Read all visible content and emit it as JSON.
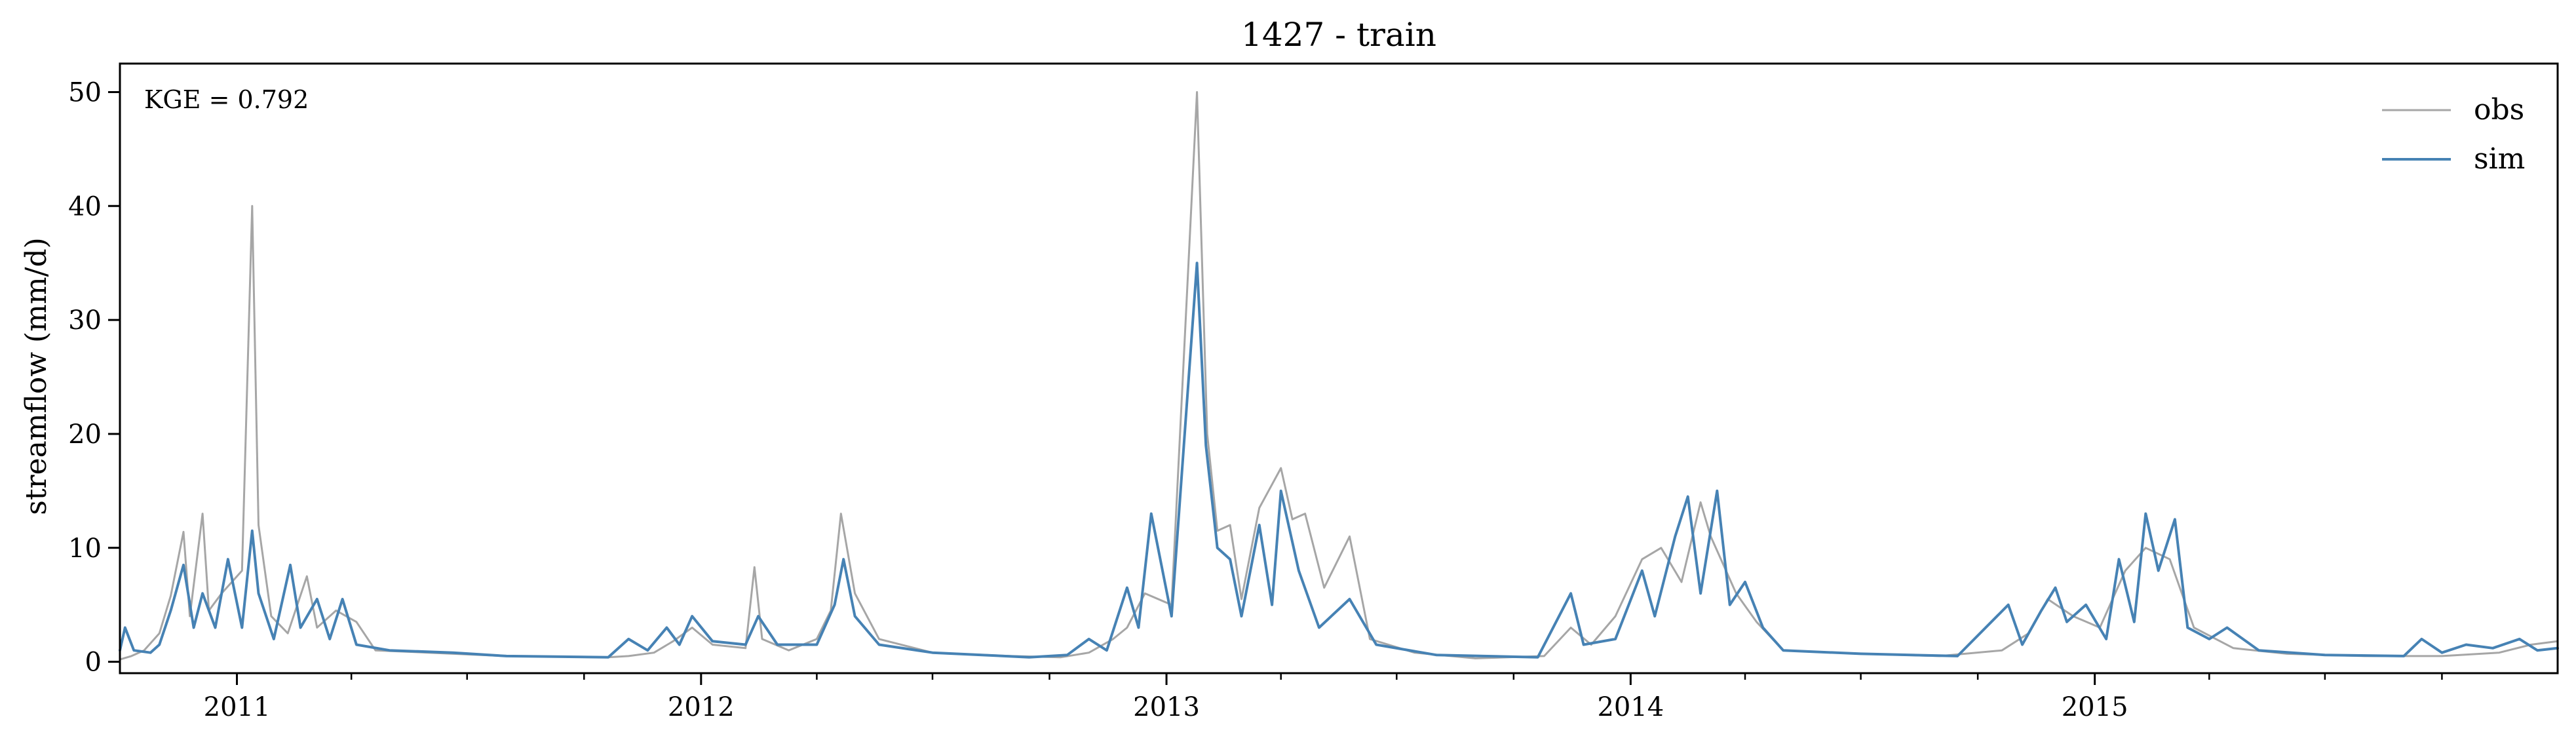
{
  "chart_data": {
    "type": "line",
    "title": "1427 - train",
    "xlabel": "",
    "ylabel": "streamflow (mm/d)",
    "annotation": "KGE = 0.792",
    "legend_position": "top-right",
    "grid": false,
    "xlim": [
      "2010-10-01",
      "2015-12-31"
    ],
    "ylim": [
      -1,
      52.5
    ],
    "x_ticks": [
      {
        "value": "2011-01-01",
        "label": "2011"
      },
      {
        "value": "2012-01-01",
        "label": "2012"
      },
      {
        "value": "2013-01-01",
        "label": "2013"
      },
      {
        "value": "2014-01-01",
        "label": "2014"
      },
      {
        "value": "2015-01-01",
        "label": "2015"
      }
    ],
    "y_ticks": [
      0,
      10,
      20,
      30,
      40,
      50
    ],
    "series": [
      {
        "name": "obs",
        "color": "#a6a6a6",
        "points": [
          [
            "2010-10-01",
            0.2
          ],
          [
            "2010-10-10",
            0.5
          ],
          [
            "2010-10-20",
            1.0
          ],
          [
            "2010-11-01",
            2.5
          ],
          [
            "2010-11-10",
            5.8
          ],
          [
            "2010-11-20",
            11.4
          ],
          [
            "2010-11-25",
            4.0
          ],
          [
            "2010-12-05",
            13.0
          ],
          [
            "2010-12-10",
            4.5
          ],
          [
            "2010-12-20",
            6.0
          ],
          [
            "2011-01-05",
            8.0
          ],
          [
            "2011-01-13",
            40.0
          ],
          [
            "2011-01-18",
            12.0
          ],
          [
            "2011-01-28",
            4.0
          ],
          [
            "2011-02-10",
            2.5
          ],
          [
            "2011-02-25",
            7.5
          ],
          [
            "2011-03-05",
            3.0
          ],
          [
            "2011-03-20",
            4.5
          ],
          [
            "2011-04-05",
            3.5
          ],
          [
            "2011-04-20",
            1.0
          ],
          [
            "2011-06-01",
            0.8
          ],
          [
            "2011-08-01",
            0.5
          ],
          [
            "2011-10-20",
            0.4
          ],
          [
            "2011-11-05",
            0.5
          ],
          [
            "2011-11-25",
            0.8
          ],
          [
            "2011-12-10",
            1.8
          ],
          [
            "2011-12-25",
            3.0
          ],
          [
            "2012-01-10",
            1.5
          ],
          [
            "2012-02-05",
            1.2
          ],
          [
            "2012-02-12",
            8.3
          ],
          [
            "2012-02-18",
            2.0
          ],
          [
            "2012-03-10",
            1.0
          ],
          [
            "2012-04-01",
            2.0
          ],
          [
            "2012-04-12",
            4.5
          ],
          [
            "2012-04-20",
            13.0
          ],
          [
            "2012-05-01",
            6.0
          ],
          [
            "2012-05-20",
            2.0
          ],
          [
            "2012-07-01",
            0.8
          ],
          [
            "2012-09-01",
            0.5
          ],
          [
            "2012-10-10",
            0.4
          ],
          [
            "2012-11-01",
            0.8
          ],
          [
            "2012-11-20",
            2.0
          ],
          [
            "2012-12-01",
            3.0
          ],
          [
            "2012-12-15",
            6.0
          ],
          [
            "2013-01-05",
            5.0
          ],
          [
            "2013-01-25",
            50.0
          ],
          [
            "2013-02-02",
            20.0
          ],
          [
            "2013-02-10",
            11.5
          ],
          [
            "2013-02-20",
            12.0
          ],
          [
            "2013-03-01",
            5.5
          ],
          [
            "2013-03-15",
            13.5
          ],
          [
            "2013-04-01",
            17.0
          ],
          [
            "2013-04-10",
            12.5
          ],
          [
            "2013-04-20",
            13.0
          ],
          [
            "2013-05-05",
            6.5
          ],
          [
            "2013-05-25",
            11.0
          ],
          [
            "2013-06-10",
            2.0
          ],
          [
            "2013-07-15",
            0.8
          ],
          [
            "2013-09-01",
            0.3
          ],
          [
            "2013-10-25",
            0.5
          ],
          [
            "2013-11-15",
            3.0
          ],
          [
            "2013-12-01",
            1.5
          ],
          [
            "2013-12-20",
            4.0
          ],
          [
            "2014-01-10",
            9.0
          ],
          [
            "2014-01-25",
            10.0
          ],
          [
            "2014-02-10",
            7.0
          ],
          [
            "2014-02-25",
            14.0
          ],
          [
            "2014-03-05",
            11.0
          ],
          [
            "2014-03-25",
            6.0
          ],
          [
            "2014-04-10",
            3.5
          ],
          [
            "2014-05-01",
            1.0
          ],
          [
            "2014-07-01",
            0.7
          ],
          [
            "2014-09-01",
            0.5
          ],
          [
            "2014-10-20",
            1.0
          ],
          [
            "2014-11-10",
            2.5
          ],
          [
            "2014-11-25",
            5.5
          ],
          [
            "2014-12-15",
            4.0
          ],
          [
            "2015-01-05",
            3.0
          ],
          [
            "2015-01-25",
            8.0
          ],
          [
            "2015-02-10",
            10.0
          ],
          [
            "2015-03-01",
            9.0
          ],
          [
            "2015-03-20",
            3.0
          ],
          [
            "2015-04-20",
            1.2
          ],
          [
            "2015-06-01",
            0.7
          ],
          [
            "2015-08-01",
            0.5
          ],
          [
            "2015-10-01",
            0.5
          ],
          [
            "2015-11-15",
            0.8
          ],
          [
            "2015-12-10",
            1.5
          ],
          [
            "2015-12-31",
            1.8
          ]
        ]
      },
      {
        "name": "sim",
        "color": "#4682b4",
        "points": [
          [
            "2010-10-01",
            1.0
          ],
          [
            "2010-10-05",
            3.0
          ],
          [
            "2010-10-12",
            1.0
          ],
          [
            "2010-10-25",
            0.8
          ],
          [
            "2010-11-01",
            1.5
          ],
          [
            "2010-11-10",
            4.5
          ],
          [
            "2010-11-20",
            8.5
          ],
          [
            "2010-11-28",
            3.0
          ],
          [
            "2010-12-05",
            6.0
          ],
          [
            "2010-12-15",
            3.0
          ],
          [
            "2010-12-25",
            9.0
          ],
          [
            "2011-01-05",
            3.0
          ],
          [
            "2011-01-13",
            11.5
          ],
          [
            "2011-01-18",
            6.0
          ],
          [
            "2011-01-30",
            2.0
          ],
          [
            "2011-02-12",
            8.5
          ],
          [
            "2011-02-20",
            3.0
          ],
          [
            "2011-03-05",
            5.5
          ],
          [
            "2011-03-15",
            2.0
          ],
          [
            "2011-03-25",
            5.5
          ],
          [
            "2011-04-05",
            1.5
          ],
          [
            "2011-05-01",
            1.0
          ],
          [
            "2011-06-20",
            0.8
          ],
          [
            "2011-08-01",
            0.5
          ],
          [
            "2011-10-20",
            0.4
          ],
          [
            "2011-11-05",
            2.0
          ],
          [
            "2011-11-20",
            1.0
          ],
          [
            "2011-12-05",
            3.0
          ],
          [
            "2011-12-15",
            1.5
          ],
          [
            "2011-12-25",
            4.0
          ],
          [
            "2012-01-10",
            1.8
          ],
          [
            "2012-02-05",
            1.5
          ],
          [
            "2012-02-15",
            4.0
          ],
          [
            "2012-03-01",
            1.5
          ],
          [
            "2012-04-01",
            1.5
          ],
          [
            "2012-04-15",
            5.0
          ],
          [
            "2012-04-22",
            9.0
          ],
          [
            "2012-05-01",
            4.0
          ],
          [
            "2012-05-20",
            1.5
          ],
          [
            "2012-07-01",
            0.8
          ],
          [
            "2012-09-15",
            0.4
          ],
          [
            "2012-10-15",
            0.6
          ],
          [
            "2012-11-01",
            2.0
          ],
          [
            "2012-11-15",
            1.0
          ],
          [
            "2012-12-01",
            6.5
          ],
          [
            "2012-12-10",
            3.0
          ],
          [
            "2012-12-20",
            13.0
          ],
          [
            "2013-01-05",
            4.0
          ],
          [
            "2013-01-25",
            35.0
          ],
          [
            "2013-02-01",
            19.0
          ],
          [
            "2013-02-10",
            10.0
          ],
          [
            "2013-02-20",
            9.0
          ],
          [
            "2013-03-01",
            4.0
          ],
          [
            "2013-03-15",
            12.0
          ],
          [
            "2013-03-25",
            5.0
          ],
          [
            "2013-04-01",
            15.0
          ],
          [
            "2013-04-15",
            8.0
          ],
          [
            "2013-05-01",
            3.0
          ],
          [
            "2013-05-25",
            5.5
          ],
          [
            "2013-06-15",
            1.5
          ],
          [
            "2013-08-01",
            0.6
          ],
          [
            "2013-10-20",
            0.4
          ],
          [
            "2013-11-15",
            6.0
          ],
          [
            "2013-11-25",
            1.5
          ],
          [
            "2013-12-20",
            2.0
          ],
          [
            "2014-01-10",
            8.0
          ],
          [
            "2014-01-20",
            4.0
          ],
          [
            "2014-02-05",
            11.0
          ],
          [
            "2014-02-15",
            14.5
          ],
          [
            "2014-02-25",
            6.0
          ],
          [
            "2014-03-10",
            15.0
          ],
          [
            "2014-03-20",
            5.0
          ],
          [
            "2014-04-01",
            7.0
          ],
          [
            "2014-04-15",
            3.0
          ],
          [
            "2014-05-01",
            1.0
          ],
          [
            "2014-07-01",
            0.7
          ],
          [
            "2014-09-15",
            0.5
          ],
          [
            "2014-10-25",
            5.0
          ],
          [
            "2014-11-05",
            1.5
          ],
          [
            "2014-11-20",
            4.5
          ],
          [
            "2014-12-01",
            6.5
          ],
          [
            "2014-12-10",
            3.5
          ],
          [
            "2014-12-25",
            5.0
          ],
          [
            "2015-01-10",
            2.0
          ],
          [
            "2015-01-20",
            9.0
          ],
          [
            "2015-02-01",
            3.5
          ],
          [
            "2015-02-10",
            13.0
          ],
          [
            "2015-02-20",
            8.0
          ],
          [
            "2015-03-05",
            12.5
          ],
          [
            "2015-03-15",
            3.0
          ],
          [
            "2015-04-01",
            2.0
          ],
          [
            "2015-04-15",
            3.0
          ],
          [
            "2015-05-10",
            1.0
          ],
          [
            "2015-07-01",
            0.6
          ],
          [
            "2015-09-01",
            0.5
          ],
          [
            "2015-09-15",
            2.0
          ],
          [
            "2015-10-01",
            0.8
          ],
          [
            "2015-10-20",
            1.5
          ],
          [
            "2015-11-10",
            1.2
          ],
          [
            "2015-12-01",
            2.0
          ],
          [
            "2015-12-15",
            1.0
          ],
          [
            "2015-12-31",
            1.2
          ]
        ]
      }
    ]
  }
}
